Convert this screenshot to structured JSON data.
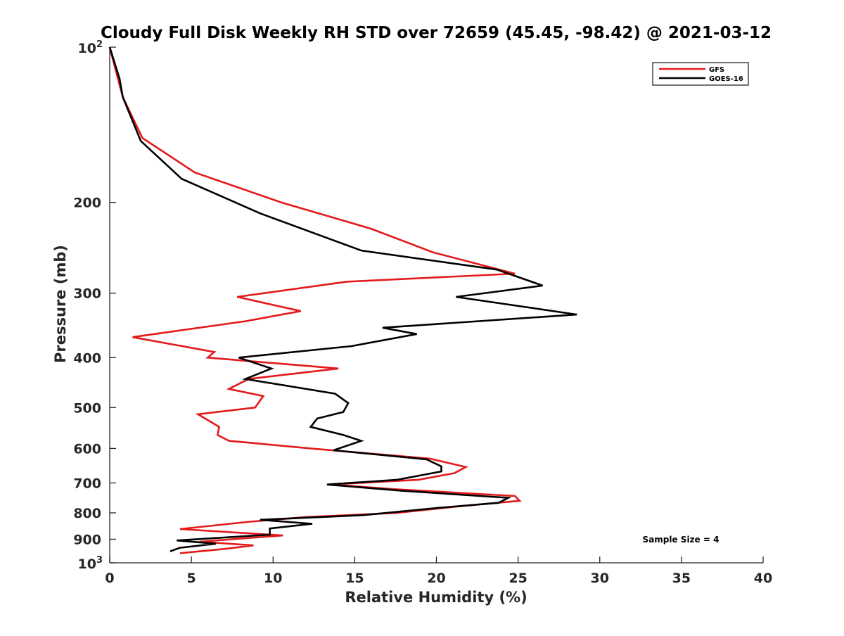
{
  "chart_data": {
    "type": "line",
    "title": "Cloudy Full Disk Weekly RH STD over 72659 (45.45, -98.42) @ 2021-03-12",
    "xlabel": "Relative Humidity (%)",
    "ylabel": "Pressure (mb)",
    "xlim": [
      0,
      40
    ],
    "ylim": [
      100,
      1000
    ],
    "y_scale": "log",
    "y_reversed": true,
    "grid": false,
    "legend_position": "top-right",
    "x_ticks": [
      "0",
      "5",
      "10",
      "15",
      "20",
      "25",
      "30",
      "35",
      "40"
    ],
    "y_ticks": [
      {
        "value": 100,
        "base": "10",
        "exp": "2"
      },
      {
        "value": 200,
        "label": "200"
      },
      {
        "value": 300,
        "label": "300"
      },
      {
        "value": 400,
        "label": "400"
      },
      {
        "value": 500,
        "label": "500"
      },
      {
        "value": 600,
        "label": "600"
      },
      {
        "value": 700,
        "label": "700"
      },
      {
        "value": 800,
        "label": "800"
      },
      {
        "value": 900,
        "label": "900"
      },
      {
        "value": 1000,
        "base": "10",
        "exp": "3"
      }
    ],
    "annotation": "Sample Size = 4",
    "series": [
      {
        "name": "GFS",
        "color": "#e31a1c",
        "points": [
          [
            0.0,
            100
          ],
          [
            0.5,
            115
          ],
          [
            0.8,
            125
          ],
          [
            2.0,
            150
          ],
          [
            5.2,
            175
          ],
          [
            10.5,
            200
          ],
          [
            16.0,
            225
          ],
          [
            19.8,
            250
          ],
          [
            24.8,
            275
          ],
          [
            14.5,
            285
          ],
          [
            7.8,
            305
          ],
          [
            11.7,
            325
          ],
          [
            8.3,
            340
          ],
          [
            1.4,
            365
          ],
          [
            6.4,
            390
          ],
          [
            6.0,
            400
          ],
          [
            14.0,
            420
          ],
          [
            8.5,
            440
          ],
          [
            7.3,
            460
          ],
          [
            9.4,
            475
          ],
          [
            8.9,
            500
          ],
          [
            5.4,
            515
          ],
          [
            6.7,
            545
          ],
          [
            6.6,
            565
          ],
          [
            7.3,
            580
          ],
          [
            12.3,
            600
          ],
          [
            19.6,
            628
          ],
          [
            21.8,
            652
          ],
          [
            21.1,
            670
          ],
          [
            18.9,
            690
          ],
          [
            13.5,
            705
          ],
          [
            17.5,
            720
          ],
          [
            24.8,
            742
          ],
          [
            25.1,
            758
          ],
          [
            21.2,
            778
          ],
          [
            17.6,
            800
          ],
          [
            12.0,
            815
          ],
          [
            8.6,
            832
          ],
          [
            4.3,
            860
          ],
          [
            10.6,
            885
          ],
          [
            5.5,
            910
          ],
          [
            8.8,
            925
          ],
          [
            7.0,
            940
          ],
          [
            4.3,
            958
          ]
        ]
      },
      {
        "name": "GOES-16",
        "color": "#000000",
        "points": [
          [
            0.0,
            100
          ],
          [
            0.6,
            115
          ],
          [
            0.8,
            125
          ],
          [
            1.9,
            152
          ],
          [
            4.4,
            180
          ],
          [
            9.2,
            210
          ],
          [
            15.4,
            248
          ],
          [
            23.7,
            270
          ],
          [
            26.5,
            290
          ],
          [
            21.2,
            305
          ],
          [
            28.6,
            330
          ],
          [
            16.7,
            350
          ],
          [
            18.8,
            360
          ],
          [
            14.8,
            380
          ],
          [
            7.9,
            400
          ],
          [
            9.9,
            420
          ],
          [
            8.3,
            440
          ],
          [
            13.8,
            470
          ],
          [
            14.6,
            490
          ],
          [
            14.3,
            510
          ],
          [
            12.7,
            525
          ],
          [
            12.3,
            545
          ],
          [
            14.3,
            565
          ],
          [
            15.4,
            580
          ],
          [
            13.7,
            605
          ],
          [
            19.4,
            630
          ],
          [
            20.3,
            650
          ],
          [
            20.3,
            665
          ],
          [
            17.6,
            690
          ],
          [
            13.3,
            705
          ],
          [
            17.9,
            725
          ],
          [
            24.4,
            748
          ],
          [
            23.8,
            765
          ],
          [
            20.2,
            782
          ],
          [
            15.6,
            808
          ],
          [
            9.2,
            825
          ],
          [
            12.4,
            840
          ],
          [
            9.8,
            858
          ],
          [
            9.8,
            882
          ],
          [
            4.1,
            905
          ],
          [
            6.5,
            918
          ],
          [
            4.3,
            935
          ],
          [
            3.7,
            950
          ]
        ]
      }
    ]
  }
}
